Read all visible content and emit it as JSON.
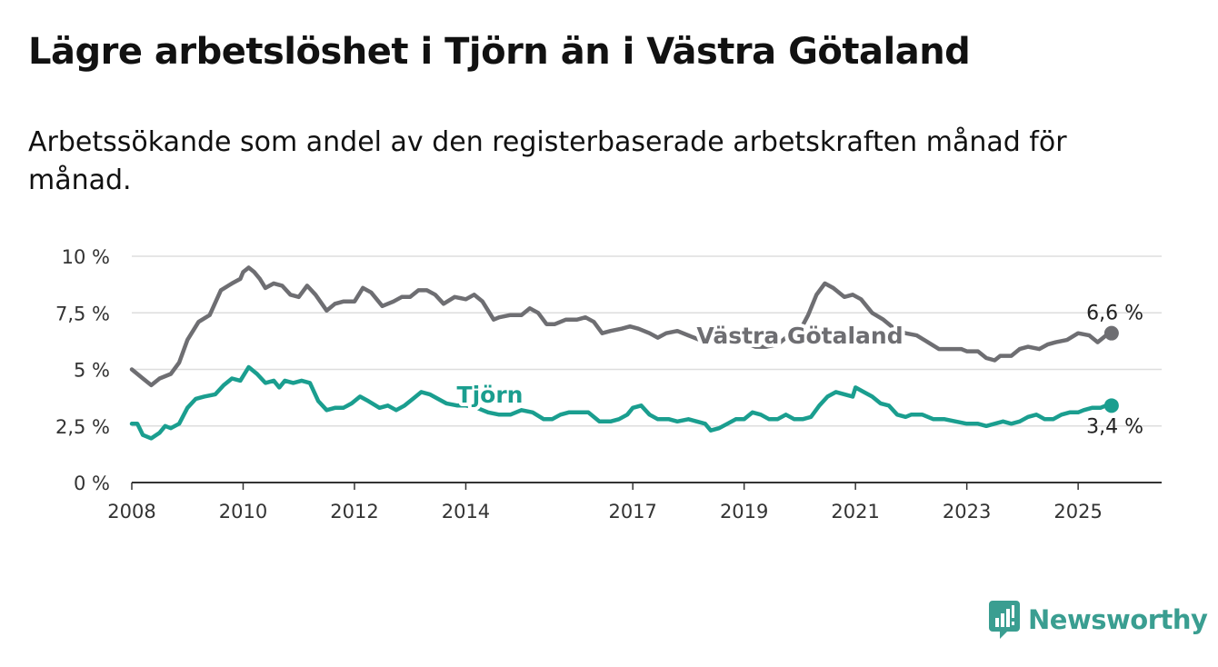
{
  "title": "Lägre arbetslöshet i Tjörn än i Västra Götaland",
  "subtitle": "Arbetssökande som andel av den registerbaserade arbetskraften månad för månad.",
  "brand": {
    "name": "Newsworthy",
    "color": "#3a9e91",
    "icon": "newsworthy-logo-icon"
  },
  "chart_data": {
    "type": "line",
    "xlim": [
      2008,
      2026.5
    ],
    "ylim": [
      0,
      10
    ],
    "y_ticks": [
      0,
      2.5,
      5,
      7.5,
      10
    ],
    "y_tick_labels": [
      "0 %",
      "2,5 %",
      "5 %",
      "7,5 %",
      "10 %"
    ],
    "x_ticks": [
      2008,
      2010,
      2012,
      2014,
      2017,
      2019,
      2021,
      2023,
      2025
    ],
    "x_tick_labels": [
      "2008",
      "2010",
      "2012",
      "2014",
      "2017",
      "2019",
      "2021",
      "2023",
      "2025"
    ],
    "grid": true,
    "series": [
      {
        "name": "Västra Götaland",
        "color": "#6e6e72",
        "end_label": "6,6 %",
        "points": [
          [
            2008.0,
            5.0
          ],
          [
            2008.1,
            4.8
          ],
          [
            2008.2,
            4.6
          ],
          [
            2008.35,
            4.3
          ],
          [
            2008.5,
            4.6
          ],
          [
            2008.7,
            4.8
          ],
          [
            2008.85,
            5.3
          ],
          [
            2009.0,
            6.3
          ],
          [
            2009.2,
            7.1
          ],
          [
            2009.4,
            7.4
          ],
          [
            2009.6,
            8.5
          ],
          [
            2009.8,
            8.8
          ],
          [
            2009.95,
            9.0
          ],
          [
            2010.0,
            9.3
          ],
          [
            2010.1,
            9.5
          ],
          [
            2010.2,
            9.3
          ],
          [
            2010.3,
            9.0
          ],
          [
            2010.4,
            8.6
          ],
          [
            2010.55,
            8.8
          ],
          [
            2010.7,
            8.7
          ],
          [
            2010.85,
            8.3
          ],
          [
            2011.0,
            8.2
          ],
          [
            2011.15,
            8.7
          ],
          [
            2011.3,
            8.3
          ],
          [
            2011.5,
            7.6
          ],
          [
            2011.65,
            7.9
          ],
          [
            2011.8,
            8.0
          ],
          [
            2012.0,
            8.0
          ],
          [
            2012.15,
            8.6
          ],
          [
            2012.3,
            8.4
          ],
          [
            2012.5,
            7.8
          ],
          [
            2012.7,
            8.0
          ],
          [
            2012.85,
            8.2
          ],
          [
            2013.0,
            8.2
          ],
          [
            2013.15,
            8.5
          ],
          [
            2013.3,
            8.5
          ],
          [
            2013.45,
            8.3
          ],
          [
            2013.6,
            7.9
          ],
          [
            2013.8,
            8.2
          ],
          [
            2014.0,
            8.1
          ],
          [
            2014.15,
            8.3
          ],
          [
            2014.3,
            8.0
          ],
          [
            2014.5,
            7.2
          ],
          [
            2014.6,
            7.3
          ],
          [
            2014.8,
            7.4
          ],
          [
            2015.0,
            7.4
          ],
          [
            2015.15,
            7.7
          ],
          [
            2015.3,
            7.5
          ],
          [
            2015.45,
            7.0
          ],
          [
            2015.6,
            7.0
          ],
          [
            2015.8,
            7.2
          ],
          [
            2016.0,
            7.2
          ],
          [
            2016.15,
            7.3
          ],
          [
            2016.3,
            7.1
          ],
          [
            2016.45,
            6.6
          ],
          [
            2016.6,
            6.7
          ],
          [
            2016.8,
            6.8
          ],
          [
            2016.95,
            6.9
          ],
          [
            2017.1,
            6.8
          ],
          [
            2017.3,
            6.6
          ],
          [
            2017.45,
            6.4
          ],
          [
            2017.6,
            6.6
          ],
          [
            2017.8,
            6.7
          ],
          [
            2018.0,
            6.5
          ],
          [
            2018.2,
            6.3
          ],
          [
            2018.4,
            6.4
          ],
          [
            2018.6,
            6.2
          ],
          [
            2018.8,
            6.1
          ],
          [
            2019.0,
            6.2
          ],
          [
            2019.2,
            6.0
          ],
          [
            2019.4,
            6.0
          ],
          [
            2019.6,
            6.1
          ],
          [
            2019.8,
            6.5
          ],
          [
            2020.0,
            6.7
          ],
          [
            2020.15,
            7.4
          ],
          [
            2020.3,
            8.3
          ],
          [
            2020.45,
            8.8
          ],
          [
            2020.6,
            8.6
          ],
          [
            2020.8,
            8.2
          ],
          [
            2020.95,
            8.3
          ],
          [
            2021.1,
            8.1
          ],
          [
            2021.3,
            7.5
          ],
          [
            2021.5,
            7.2
          ],
          [
            2021.7,
            6.8
          ],
          [
            2021.9,
            6.6
          ],
          [
            2022.1,
            6.5
          ],
          [
            2022.3,
            6.2
          ],
          [
            2022.5,
            5.9
          ],
          [
            2022.7,
            5.9
          ],
          [
            2022.9,
            5.9
          ],
          [
            2023.0,
            5.8
          ],
          [
            2023.2,
            5.8
          ],
          [
            2023.35,
            5.5
          ],
          [
            2023.5,
            5.4
          ],
          [
            2023.6,
            5.6
          ],
          [
            2023.8,
            5.6
          ],
          [
            2023.95,
            5.9
          ],
          [
            2024.1,
            6.0
          ],
          [
            2024.3,
            5.9
          ],
          [
            2024.45,
            6.1
          ],
          [
            2024.6,
            6.2
          ],
          [
            2024.8,
            6.3
          ],
          [
            2025.0,
            6.6
          ],
          [
            2025.2,
            6.5
          ],
          [
            2025.35,
            6.2
          ],
          [
            2025.5,
            6.5
          ],
          [
            2025.6,
            6.6
          ]
        ]
      },
      {
        "name": "Tjörn",
        "color": "#1a9e8f",
        "end_label": "3,4 %",
        "points": [
          [
            2008.0,
            2.6
          ],
          [
            2008.1,
            2.6
          ],
          [
            2008.2,
            2.1
          ],
          [
            2008.35,
            1.95
          ],
          [
            2008.5,
            2.2
          ],
          [
            2008.6,
            2.5
          ],
          [
            2008.7,
            2.4
          ],
          [
            2008.85,
            2.6
          ],
          [
            2009.0,
            3.3
          ],
          [
            2009.15,
            3.7
          ],
          [
            2009.3,
            3.8
          ],
          [
            2009.5,
            3.9
          ],
          [
            2009.65,
            4.3
          ],
          [
            2009.8,
            4.6
          ],
          [
            2009.95,
            4.5
          ],
          [
            2010.1,
            5.1
          ],
          [
            2010.25,
            4.8
          ],
          [
            2010.4,
            4.4
          ],
          [
            2010.55,
            4.5
          ],
          [
            2010.65,
            4.2
          ],
          [
            2010.75,
            4.5
          ],
          [
            2010.9,
            4.4
          ],
          [
            2011.05,
            4.5
          ],
          [
            2011.2,
            4.4
          ],
          [
            2011.35,
            3.6
          ],
          [
            2011.5,
            3.2
          ],
          [
            2011.65,
            3.3
          ],
          [
            2011.8,
            3.3
          ],
          [
            2011.95,
            3.5
          ],
          [
            2012.1,
            3.8
          ],
          [
            2012.25,
            3.6
          ],
          [
            2012.45,
            3.3
          ],
          [
            2012.6,
            3.4
          ],
          [
            2012.75,
            3.2
          ],
          [
            2012.9,
            3.4
          ],
          [
            2013.05,
            3.7
          ],
          [
            2013.2,
            4.0
          ],
          [
            2013.35,
            3.9
          ],
          [
            2013.5,
            3.7
          ],
          [
            2013.65,
            3.5
          ],
          [
            2013.85,
            3.4
          ],
          [
            2014.0,
            3.4
          ],
          [
            2014.2,
            3.3
          ],
          [
            2014.4,
            3.1
          ],
          [
            2014.6,
            3.0
          ],
          [
            2014.8,
            3.0
          ],
          [
            2015.0,
            3.2
          ],
          [
            2015.2,
            3.1
          ],
          [
            2015.4,
            2.8
          ],
          [
            2015.55,
            2.8
          ],
          [
            2015.7,
            3.0
          ],
          [
            2015.85,
            3.1
          ],
          [
            2016.0,
            3.1
          ],
          [
            2016.2,
            3.1
          ],
          [
            2016.4,
            2.7
          ],
          [
            2016.6,
            2.7
          ],
          [
            2016.75,
            2.8
          ],
          [
            2016.9,
            3.0
          ],
          [
            2017.0,
            3.3
          ],
          [
            2017.15,
            3.4
          ],
          [
            2017.3,
            3.0
          ],
          [
            2017.45,
            2.8
          ],
          [
            2017.65,
            2.8
          ],
          [
            2017.8,
            2.7
          ],
          [
            2018.0,
            2.8
          ],
          [
            2018.15,
            2.7
          ],
          [
            2018.3,
            2.6
          ],
          [
            2018.4,
            2.3
          ],
          [
            2018.55,
            2.4
          ],
          [
            2018.7,
            2.6
          ],
          [
            2018.85,
            2.8
          ],
          [
            2019.0,
            2.8
          ],
          [
            2019.15,
            3.1
          ],
          [
            2019.3,
            3.0
          ],
          [
            2019.45,
            2.8
          ],
          [
            2019.6,
            2.8
          ],
          [
            2019.75,
            3.0
          ],
          [
            2019.9,
            2.8
          ],
          [
            2020.05,
            2.8
          ],
          [
            2020.2,
            2.9
          ],
          [
            2020.35,
            3.4
          ],
          [
            2020.5,
            3.8
          ],
          [
            2020.65,
            4.0
          ],
          [
            2020.8,
            3.9
          ],
          [
            2020.95,
            3.8
          ],
          [
            2021.0,
            4.2
          ],
          [
            2021.15,
            4.0
          ],
          [
            2021.3,
            3.8
          ],
          [
            2021.45,
            3.5
          ],
          [
            2021.6,
            3.4
          ],
          [
            2021.75,
            3.0
          ],
          [
            2021.9,
            2.9
          ],
          [
            2022.0,
            3.0
          ],
          [
            2022.2,
            3.0
          ],
          [
            2022.4,
            2.8
          ],
          [
            2022.6,
            2.8
          ],
          [
            2022.8,
            2.7
          ],
          [
            2023.0,
            2.6
          ],
          [
            2023.2,
            2.6
          ],
          [
            2023.35,
            2.5
          ],
          [
            2023.5,
            2.6
          ],
          [
            2023.65,
            2.7
          ],
          [
            2023.8,
            2.6
          ],
          [
            2023.95,
            2.7
          ],
          [
            2024.1,
            2.9
          ],
          [
            2024.25,
            3.0
          ],
          [
            2024.4,
            2.8
          ],
          [
            2024.55,
            2.8
          ],
          [
            2024.7,
            3.0
          ],
          [
            2024.85,
            3.1
          ],
          [
            2025.0,
            3.1
          ],
          [
            2025.1,
            3.2
          ],
          [
            2025.25,
            3.3
          ],
          [
            2025.4,
            3.3
          ],
          [
            2025.5,
            3.4
          ],
          [
            2025.6,
            3.4
          ]
        ]
      }
    ],
    "annotations": [
      {
        "text": "Västra Götaland",
        "series": "Västra Götaland"
      },
      {
        "text": "Tjörn",
        "series": "Tjörn"
      }
    ]
  }
}
